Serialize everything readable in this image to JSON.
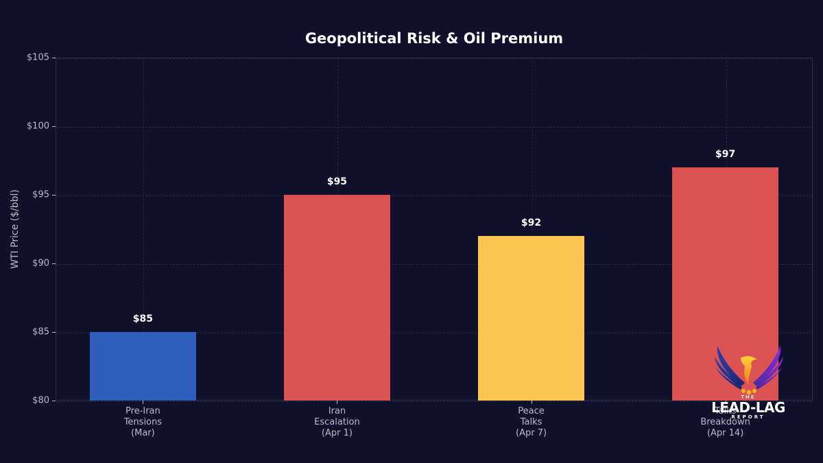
{
  "chart_data": {
    "type": "bar",
    "title": "Geopolitical Risk & Oil Premium",
    "xlabel": "",
    "ylabel": "WTI Price ($/bbl)",
    "ylim": [
      80,
      105
    ],
    "yticks": [
      "$80",
      "$85",
      "$90",
      "$95",
      "$100",
      "$105"
    ],
    "ytick_values": [
      80,
      85,
      90,
      95,
      100,
      105
    ],
    "grid": true,
    "legend": null,
    "categories": [
      "Pre-Iran\nTensions\n(Mar)",
      "Iran\nEscalation\n(Apr 1)",
      "Peace\nTalks\n(Apr 7)",
      "Talks\nBreakdown\n(Apr 14)"
    ],
    "values": [
      85,
      95,
      92,
      97
    ],
    "value_labels": [
      "$85",
      "$95",
      "$92",
      "$97"
    ],
    "colors": [
      "#2e5dbb",
      "#dc5151",
      "#fdc451",
      "#dc5151"
    ]
  },
  "background_color": "#0e1129",
  "logo": {
    "the": "THE",
    "name": "LEAD-LAG",
    "sub": "REPORT"
  }
}
